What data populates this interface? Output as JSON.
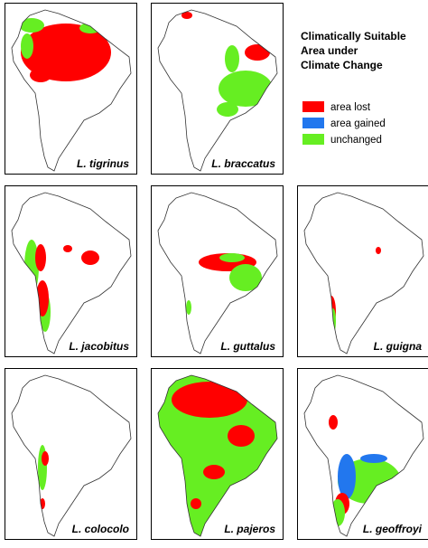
{
  "legend": {
    "title_lines": [
      "Climatically Suitable",
      "Area under",
      "Climate Change"
    ],
    "items": [
      {
        "label": "area lost",
        "color": "#ff0000"
      },
      {
        "label": "area gained",
        "color": "#2277ee"
      },
      {
        "label": "unchanged",
        "color": "#66ee22"
      }
    ]
  },
  "panels": [
    {
      "species": "L. tigrinus"
    },
    {
      "species": "L. braccatus"
    },
    {
      "species": "L. jacobitus"
    },
    {
      "species": "L. guttalus"
    },
    {
      "species": "L. guigna"
    },
    {
      "species": "L. colocolo"
    },
    {
      "species": "L. pajeros"
    },
    {
      "species": "L. geoffroyi"
    }
  ]
}
